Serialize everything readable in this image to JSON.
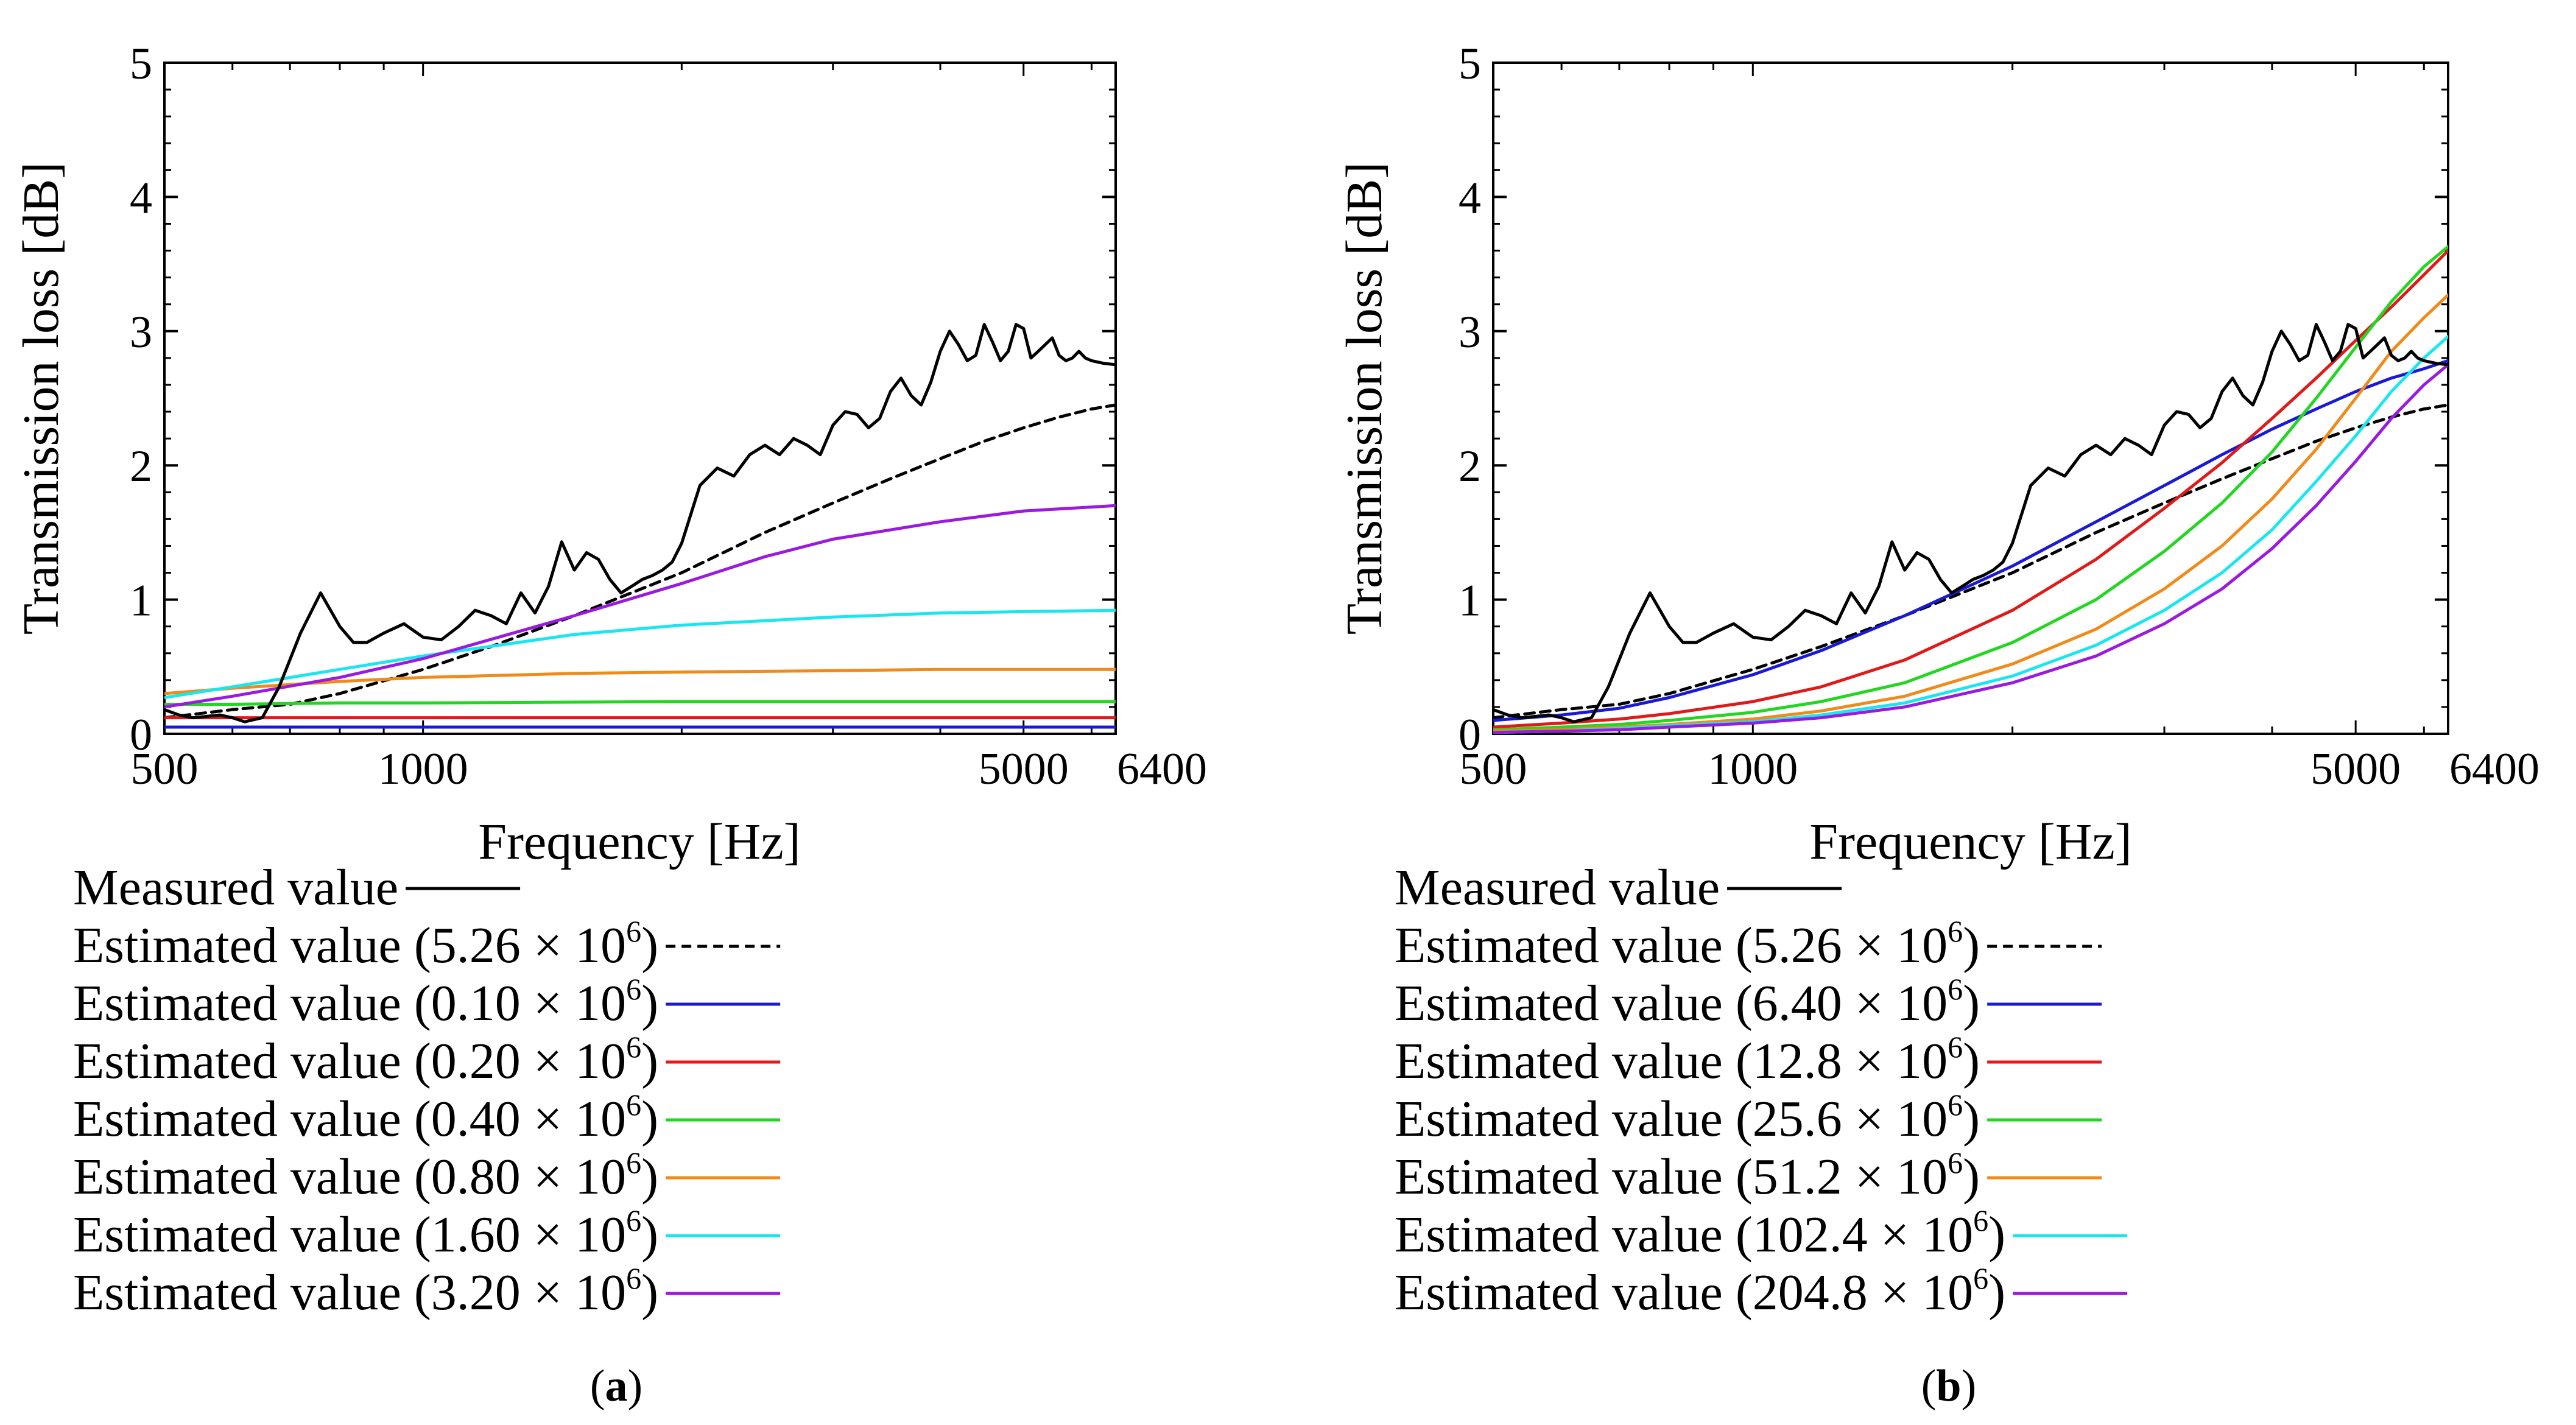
{
  "figure_labels": {
    "a_label": "a",
    "b_label": "b"
  },
  "legend_part": {
    "prefix": "Estimated value (",
    "times": " × 10",
    "exponent": "6",
    "close": ")"
  },
  "chart_data": [
    {
      "panel": "a",
      "type": "line",
      "title": "",
      "xlabel": "Frequency [Hz]",
      "ylabel": "Transmission loss [dB]",
      "xscale": "log",
      "xlim": [
        500,
        6400
      ],
      "ylim": [
        0,
        5
      ],
      "xticks": [
        500,
        1000,
        5000,
        6400
      ],
      "xtick_labels": [
        "500",
        "1000",
        "5000",
        "6400"
      ],
      "yticks": [
        0,
        1,
        2,
        3,
        4,
        5
      ],
      "ytick_labels": [
        "0",
        "1",
        "2",
        "3",
        "4",
        "5"
      ],
      "grid": false,
      "legend_placement": "below",
      "caption": "(a)",
      "measured": {
        "name": "Measured value",
        "color": "#000000",
        "x": [
          500,
          520,
          540,
          560,
          580,
          600,
          620,
          650,
          680,
          720,
          760,
          800,
          830,
          860,
          900,
          950,
          1000,
          1050,
          1100,
          1150,
          1200,
          1250,
          1300,
          1350,
          1400,
          1450,
          1500,
          1550,
          1600,
          1650,
          1700,
          1750,
          1800,
          1850,
          1900,
          1950,
          2000,
          2100,
          2200,
          2300,
          2400,
          2500,
          2600,
          2700,
          2800,
          2900,
          3000,
          3100,
          3200,
          3300,
          3400,
          3500,
          3600,
          3700,
          3800,
          3900,
          4000,
          4100,
          4200,
          4300,
          4400,
          4500,
          4600,
          4700,
          4800,
          4900,
          5000,
          5100,
          5200,
          5300,
          5400,
          5500,
          5600,
          5700,
          5800,
          5900,
          6000,
          6200,
          6400
        ],
        "y": [
          0.18,
          0.14,
          0.12,
          0.13,
          0.14,
          0.12,
          0.09,
          0.12,
          0.35,
          0.75,
          1.05,
          0.8,
          0.68,
          0.68,
          0.75,
          0.82,
          0.72,
          0.7,
          0.8,
          0.92,
          0.88,
          0.82,
          1.05,
          0.9,
          1.1,
          1.43,
          1.22,
          1.35,
          1.3,
          1.15,
          1.05,
          1.1,
          1.15,
          1.18,
          1.22,
          1.28,
          1.42,
          1.85,
          1.98,
          1.92,
          2.08,
          2.15,
          2.08,
          2.2,
          2.15,
          2.08,
          2.3,
          2.4,
          2.38,
          2.28,
          2.35,
          2.55,
          2.65,
          2.52,
          2.45,
          2.62,
          2.85,
          3.0,
          2.9,
          2.78,
          2.82,
          3.05,
          2.92,
          2.78,
          2.85,
          3.05,
          3.02,
          2.8,
          2.85,
          2.9,
          2.95,
          2.82,
          2.78,
          2.8,
          2.85,
          2.8,
          2.78,
          2.76,
          2.75
        ]
      },
      "series": [
        {
          "name": "5.26",
          "color": "#000000",
          "dashed": true,
          "x": [
            500,
            600,
            700,
            800,
            1000,
            1200,
            1500,
            2000,
            2500,
            3000,
            3500,
            4000,
            4500,
            5000,
            5500,
            6000,
            6400
          ],
          "y": [
            0.12,
            0.18,
            0.22,
            0.3,
            0.48,
            0.65,
            0.88,
            1.2,
            1.5,
            1.72,
            1.9,
            2.05,
            2.18,
            2.28,
            2.36,
            2.42,
            2.45
          ]
        },
        {
          "name": "0.10",
          "color": "#1a1ad6",
          "dashed": false,
          "x": [
            500,
            6400
          ],
          "y": [
            0.05,
            0.05
          ]
        },
        {
          "name": "0.20",
          "color": "#e01919",
          "dashed": false,
          "x": [
            500,
            6400
          ],
          "y": [
            0.12,
            0.12
          ]
        },
        {
          "name": "0.40",
          "color": "#22d622",
          "dashed": false,
          "x": [
            500,
            600,
            800,
            1000,
            2000,
            4000,
            6400
          ],
          "y": [
            0.22,
            0.22,
            0.23,
            0.23,
            0.24,
            0.24,
            0.24
          ]
        },
        {
          "name": "0.80",
          "color": "#f08a1a",
          "dashed": false,
          "x": [
            500,
            600,
            800,
            1000,
            1500,
            2000,
            3000,
            4000,
            5000,
            6400
          ],
          "y": [
            0.3,
            0.34,
            0.39,
            0.42,
            0.45,
            0.46,
            0.47,
            0.48,
            0.48,
            0.48
          ]
        },
        {
          "name": "1.60",
          "color": "#1ae6f0",
          "dashed": false,
          "x": [
            500,
            600,
            800,
            1000,
            1500,
            2000,
            3000,
            4000,
            5000,
            6400
          ],
          "y": [
            0.27,
            0.35,
            0.48,
            0.58,
            0.74,
            0.81,
            0.87,
            0.9,
            0.91,
            0.92
          ]
        },
        {
          "name": "3.20",
          "color": "#9a1ae0",
          "dashed": false,
          "x": [
            500,
            600,
            800,
            1000,
            1500,
            2000,
            2500,
            3000,
            4000,
            5000,
            6400
          ],
          "y": [
            0.2,
            0.28,
            0.42,
            0.56,
            0.88,
            1.12,
            1.32,
            1.45,
            1.58,
            1.66,
            1.7
          ]
        }
      ]
    },
    {
      "panel": "b",
      "type": "line",
      "title": "",
      "xlabel": "Frequency [Hz]",
      "ylabel": "Transmission loss [dB]",
      "xscale": "log",
      "xlim": [
        500,
        6400
      ],
      "ylim": [
        0,
        5
      ],
      "xticks": [
        500,
        1000,
        5000,
        6400
      ],
      "xtick_labels": [
        "500",
        "1000",
        "5000",
        "6400"
      ],
      "yticks": [
        0,
        1,
        2,
        3,
        4,
        5
      ],
      "ytick_labels": [
        "0",
        "1",
        "2",
        "3",
        "4",
        "5"
      ],
      "grid": false,
      "legend_placement": "below",
      "caption": "(b)",
      "measured": {
        "name": "Measured value",
        "color": "#000000",
        "x": [
          500,
          520,
          540,
          560,
          580,
          600,
          620,
          650,
          680,
          720,
          760,
          800,
          830,
          860,
          900,
          950,
          1000,
          1050,
          1100,
          1150,
          1200,
          1250,
          1300,
          1350,
          1400,
          1450,
          1500,
          1550,
          1600,
          1650,
          1700,
          1750,
          1800,
          1850,
          1900,
          1950,
          2000,
          2100,
          2200,
          2300,
          2400,
          2500,
          2600,
          2700,
          2800,
          2900,
          3000,
          3100,
          3200,
          3300,
          3400,
          3500,
          3600,
          3700,
          3800,
          3900,
          4000,
          4100,
          4200,
          4300,
          4400,
          4500,
          4600,
          4700,
          4800,
          4900,
          5000,
          5100,
          5200,
          5300,
          5400,
          5500,
          5600,
          5700,
          5800,
          5900,
          6000,
          6200,
          6400
        ],
        "y": [
          0.18,
          0.14,
          0.12,
          0.13,
          0.14,
          0.12,
          0.09,
          0.12,
          0.35,
          0.75,
          1.05,
          0.8,
          0.68,
          0.68,
          0.75,
          0.82,
          0.72,
          0.7,
          0.8,
          0.92,
          0.88,
          0.82,
          1.05,
          0.9,
          1.1,
          1.43,
          1.22,
          1.35,
          1.3,
          1.15,
          1.05,
          1.1,
          1.15,
          1.18,
          1.22,
          1.28,
          1.42,
          1.85,
          1.98,
          1.92,
          2.08,
          2.15,
          2.08,
          2.2,
          2.15,
          2.08,
          2.3,
          2.4,
          2.38,
          2.28,
          2.35,
          2.55,
          2.65,
          2.52,
          2.45,
          2.62,
          2.85,
          3.0,
          2.9,
          2.78,
          2.82,
          3.05,
          2.92,
          2.78,
          2.85,
          3.05,
          3.02,
          2.8,
          2.85,
          2.9,
          2.95,
          2.82,
          2.78,
          2.8,
          2.85,
          2.8,
          2.78,
          2.76,
          2.75
        ]
      },
      "series": [
        {
          "name": "5.26",
          "color": "#000000",
          "dashed": true,
          "x": [
            500,
            600,
            700,
            800,
            1000,
            1200,
            1500,
            2000,
            2500,
            3000,
            3500,
            4000,
            4500,
            5000,
            5500,
            6000,
            6400
          ],
          "y": [
            0.12,
            0.18,
            0.22,
            0.3,
            0.48,
            0.65,
            0.88,
            1.2,
            1.5,
            1.72,
            1.9,
            2.05,
            2.18,
            2.28,
            2.36,
            2.42,
            2.45
          ]
        },
        {
          "name": "6.40",
          "color": "#1a1ad6",
          "dashed": false,
          "x": [
            500,
            600,
            700,
            800,
            1000,
            1200,
            1500,
            2000,
            2500,
            3000,
            3500,
            4000,
            4500,
            5000,
            5500,
            6000,
            6400
          ],
          "y": [
            0.1,
            0.14,
            0.19,
            0.27,
            0.44,
            0.62,
            0.88,
            1.25,
            1.58,
            1.85,
            2.08,
            2.27,
            2.42,
            2.55,
            2.65,
            2.72,
            2.78
          ]
        },
        {
          "name": "12.8",
          "color": "#e01919",
          "dashed": false,
          "x": [
            500,
            600,
            700,
            800,
            1000,
            1200,
            1500,
            2000,
            2500,
            3000,
            3500,
            4000,
            4500,
            5000,
            5500,
            6000,
            6400
          ],
          "y": [
            0.05,
            0.08,
            0.11,
            0.15,
            0.24,
            0.35,
            0.55,
            0.92,
            1.3,
            1.68,
            2.02,
            2.35,
            2.65,
            2.93,
            3.18,
            3.42,
            3.6
          ]
        },
        {
          "name": "25.6",
          "color": "#22d622",
          "dashed": false,
          "x": [
            500,
            600,
            700,
            800,
            1000,
            1200,
            1500,
            2000,
            2500,
            3000,
            3500,
            4000,
            4500,
            5000,
            5500,
            6000,
            6400
          ],
          "y": [
            0.03,
            0.05,
            0.07,
            0.1,
            0.16,
            0.24,
            0.38,
            0.68,
            1.0,
            1.36,
            1.72,
            2.1,
            2.5,
            2.88,
            3.22,
            3.48,
            3.63
          ]
        },
        {
          "name": "51.2",
          "color": "#f08a1a",
          "dashed": false,
          "x": [
            500,
            600,
            700,
            800,
            1000,
            1200,
            1500,
            2000,
            2500,
            3000,
            3500,
            4000,
            4500,
            5000,
            5500,
            6000,
            6400
          ],
          "y": [
            0.02,
            0.03,
            0.05,
            0.07,
            0.11,
            0.17,
            0.28,
            0.52,
            0.78,
            1.08,
            1.4,
            1.75,
            2.12,
            2.5,
            2.85,
            3.1,
            3.27
          ]
        },
        {
          "name": "102.4",
          "color": "#1ae6f0",
          "dashed": false,
          "x": [
            500,
            600,
            700,
            800,
            1000,
            1200,
            1500,
            2000,
            2500,
            3000,
            3500,
            4000,
            4500,
            5000,
            5500,
            6000,
            6400
          ],
          "y": [
            0.01,
            0.02,
            0.04,
            0.06,
            0.09,
            0.14,
            0.23,
            0.43,
            0.66,
            0.92,
            1.2,
            1.52,
            1.88,
            2.22,
            2.55,
            2.8,
            2.96
          ]
        },
        {
          "name": "204.8",
          "color": "#9a1ae0",
          "dashed": false,
          "x": [
            500,
            600,
            700,
            800,
            1000,
            1200,
            1500,
            2000,
            2500,
            3000,
            3500,
            4000,
            4500,
            5000,
            5500,
            6000,
            6400
          ],
          "y": [
            0.01,
            0.02,
            0.03,
            0.05,
            0.08,
            0.12,
            0.2,
            0.38,
            0.58,
            0.82,
            1.08,
            1.38,
            1.7,
            2.03,
            2.35,
            2.6,
            2.75
          ]
        }
      ]
    }
  ]
}
